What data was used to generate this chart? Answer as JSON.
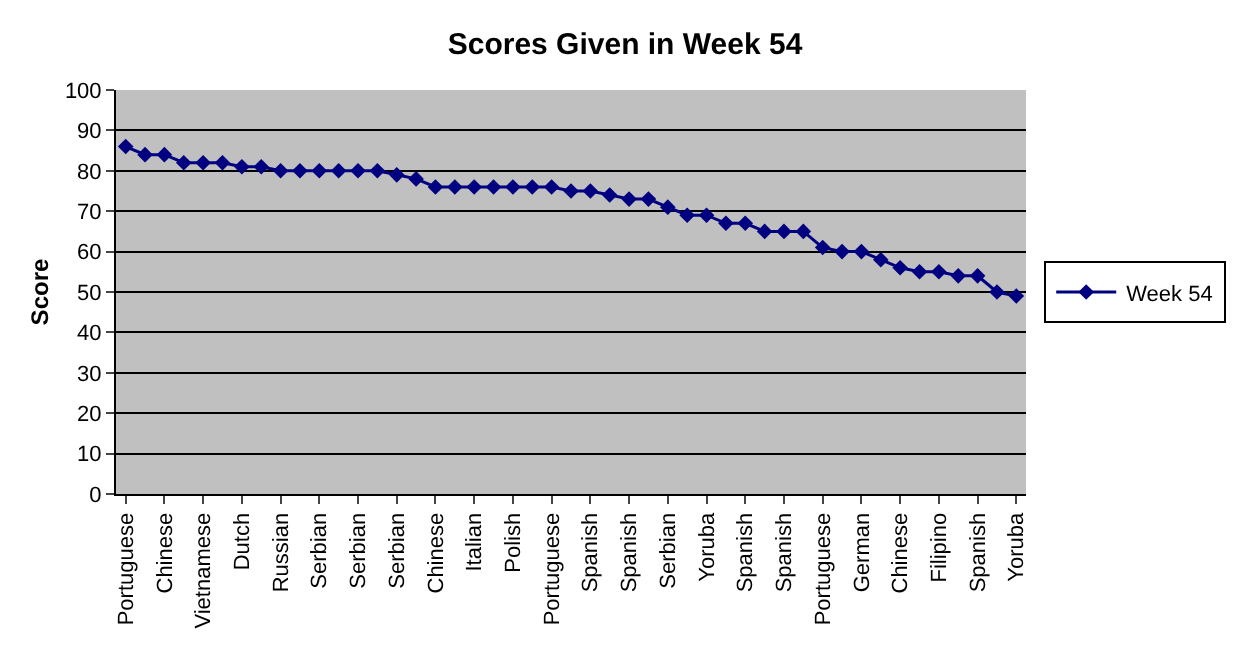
{
  "chart_data": {
    "type": "line",
    "title": "Scores Given in Week 54",
    "ylabel": "Score",
    "categories": [
      "Portuguese",
      null,
      "Chinese",
      null,
      "Vietnamese",
      null,
      "Dutch",
      null,
      "Russian",
      null,
      "Serbian",
      null,
      "Serbian",
      null,
      "Serbian",
      null,
      "Chinese",
      null,
      "Italian",
      null,
      "Polish",
      null,
      "Portuguese",
      null,
      "Spanish",
      null,
      "Spanish",
      null,
      "Serbian",
      null,
      "Yoruba",
      null,
      "Spanish",
      null,
      "Spanish",
      null,
      "Portuguese",
      null,
      "German",
      null,
      "Chinese",
      null,
      "Filipino",
      null,
      "Spanish",
      null,
      "Yoruba"
    ],
    "series": [
      {
        "name": "Week 54",
        "color": "#000080",
        "values": [
          86,
          84,
          84,
          82,
          82,
          82,
          81,
          81,
          80,
          80,
          80,
          80,
          80,
          80,
          79,
          78,
          76,
          76,
          76,
          76,
          76,
          76,
          76,
          75,
          75,
          74,
          73,
          73,
          71,
          69,
          69,
          67,
          67,
          65,
          65,
          65,
          61,
          60,
          60,
          58,
          56,
          55,
          55,
          54,
          54,
          50,
          49
        ]
      }
    ],
    "ylim": [
      0,
      100
    ],
    "yticks": [
      0,
      10,
      20,
      30,
      40,
      50,
      60,
      70,
      80,
      90,
      100
    ],
    "grid": "y",
    "legend": "right",
    "marker": "diamond",
    "line_style": "solid"
  }
}
